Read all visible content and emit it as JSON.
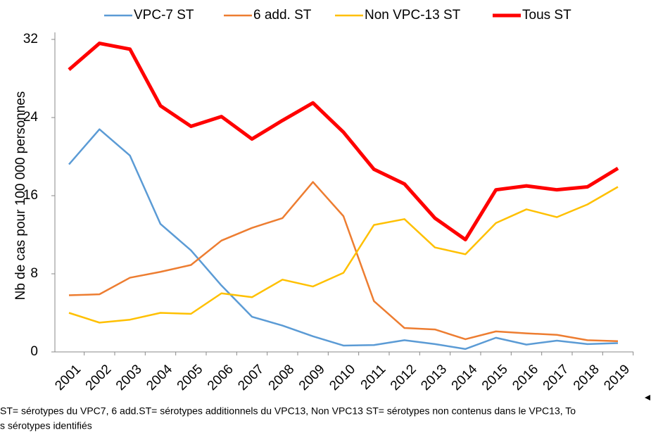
{
  "chart_data": {
    "type": "line",
    "y_label": "Nb de cas pour 100 000 personnes",
    "categories": [
      "2001",
      "2002",
      "2003",
      "2004",
      "2005",
      "2006",
      "2007",
      "2008",
      "2009",
      "2010",
      "2011",
      "2012",
      "2013",
      "2014",
      "2015",
      "2016",
      "2017",
      "2018",
      "2019"
    ],
    "series": [
      {
        "name": "VPC-7 ST",
        "color": "#5b9bd5",
        "values": [
          19.2,
          22.8,
          20.1,
          13.1,
          10.4,
          6.8,
          3.6,
          2.7,
          1.6,
          0.65,
          0.7,
          1.2,
          0.8,
          0.3,
          1.45,
          0.75,
          1.15,
          0.8,
          0.9
        ]
      },
      {
        "name": "6 add. ST",
        "color": "#ed7d31",
        "values": [
          5.8,
          5.9,
          7.6,
          8.2,
          8.9,
          11.4,
          12.7,
          13.7,
          17.4,
          13.9,
          5.2,
          2.45,
          2.3,
          1.3,
          2.1,
          1.9,
          1.75,
          1.2,
          1.1
        ]
      },
      {
        "name": "Non VPC-13 ST",
        "color": "#ffc000",
        "values": [
          4.0,
          3.0,
          3.3,
          4.0,
          3.9,
          6.0,
          5.6,
          7.4,
          6.7,
          8.1,
          13.0,
          13.6,
          10.7,
          10.0,
          13.2,
          14.6,
          13.8,
          15.1,
          16.9
        ]
      },
      {
        "name": "Tous ST",
        "color": "#ff0000",
        "values": [
          28.9,
          31.6,
          31.0,
          25.2,
          23.1,
          24.1,
          21.8,
          23.7,
          25.5,
          22.5,
          18.7,
          17.2,
          13.7,
          11.5,
          16.6,
          17.0,
          16.6,
          16.9,
          18.8
        ]
      }
    ],
    "ylim": [
      0,
      32
    ],
    "yticks": [
      0,
      8,
      16,
      24,
      32
    ],
    "grid": false,
    "legend": "top",
    "footnote": [
      "ST= sérotypes du VPC7, 6 add.ST= sérotypes additionnels du VPC13, Non VPC13 ST= sérotypes non contenus dans le VPC13, To",
      "s sérotypes identifiés"
    ]
  }
}
